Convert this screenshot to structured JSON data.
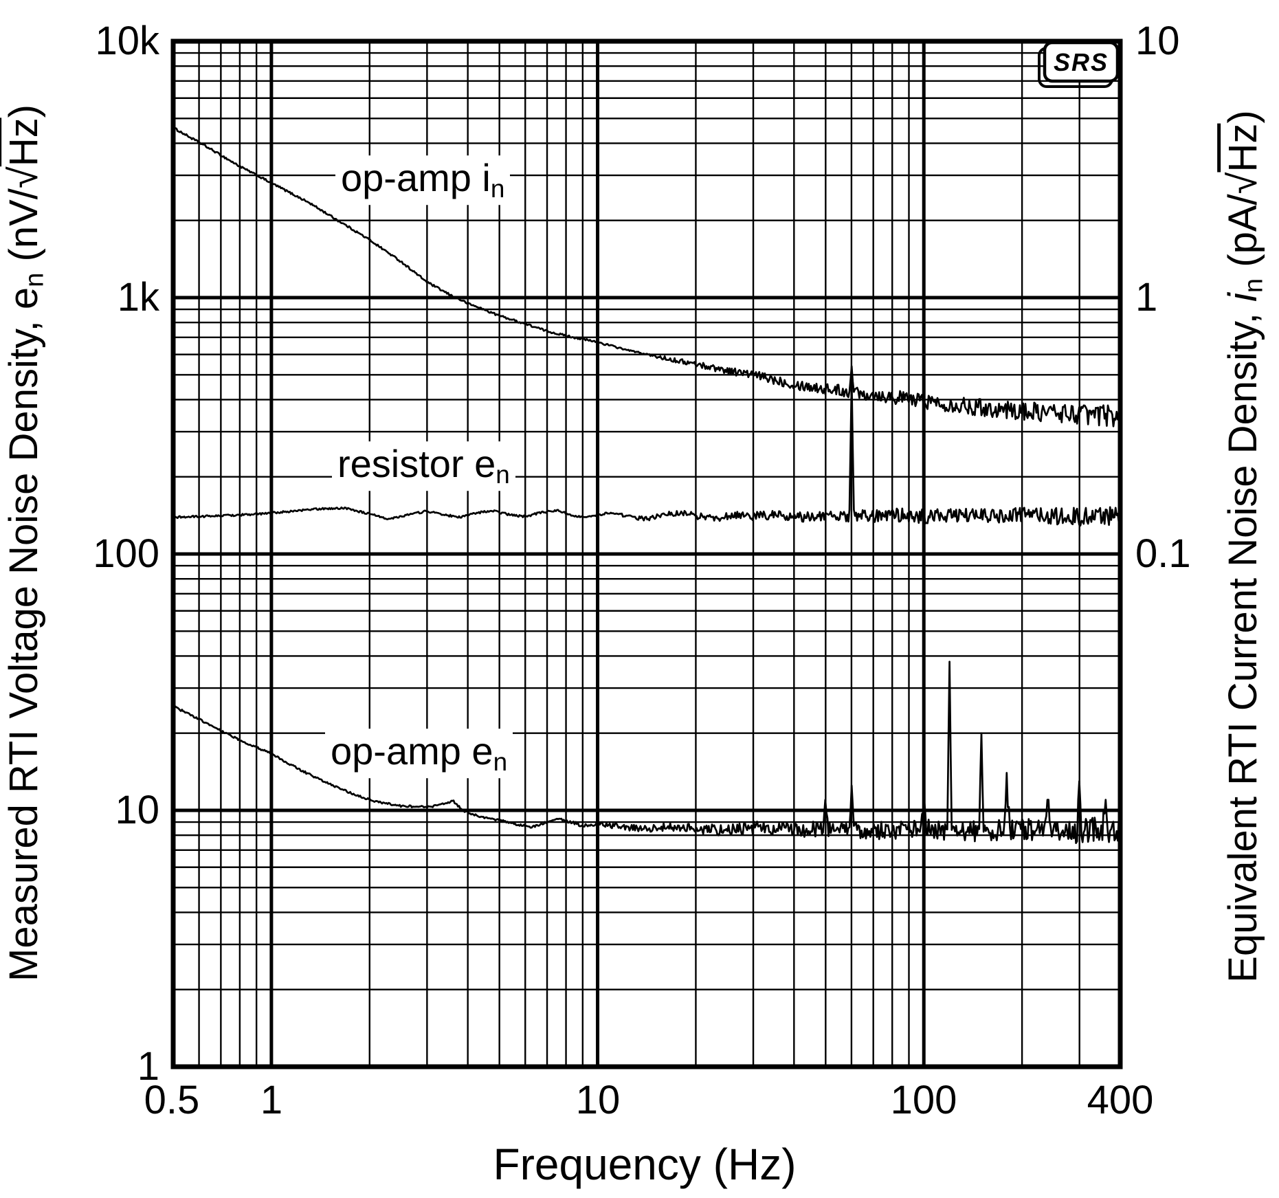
{
  "figure": {
    "background": "#ffffff",
    "ink": "#000000"
  },
  "logo": {
    "text": "SRS"
  },
  "chart_data": {
    "type": "line",
    "title": "",
    "xlabel": "Frequency (Hz)",
    "x_scale": "log",
    "y_scale": "log",
    "grid": "on, log major and minor, black on white",
    "xlim": [
      0.5,
      400
    ],
    "ylim_left_nV_per_rtHz": [
      1,
      10000
    ],
    "ylim_right_pA_per_rtHz": [
      0.001,
      10
    ],
    "left_axis_title": {
      "text": "Measured RTI Voltage Noise Density, e",
      "sub": "n",
      "unit_open": " (nV/",
      "sqrt": "√",
      "unit": "Hz",
      "close": ")"
    },
    "right_axis_title": {
      "text": "Equivalent RTI Current Noise Density, ",
      "italic": "i",
      "sub": "n",
      "unit_open": " (pA/",
      "sqrt": "√",
      "unit": "Hz",
      "close": ")"
    },
    "x_ticks": [
      {
        "value": 0.5,
        "label": "0.5"
      },
      {
        "value": 1,
        "label": "1"
      },
      {
        "value": 10,
        "label": "10"
      },
      {
        "value": 100,
        "label": "100"
      },
      {
        "value": 400,
        "label": "400"
      }
    ],
    "y_ticks_left": [
      {
        "value": 10000,
        "label": "10k"
      },
      {
        "value": 1000,
        "label": "1k"
      },
      {
        "value": 100,
        "label": "100"
      },
      {
        "value": 10,
        "label": "10"
      },
      {
        "value": 1,
        "label": "1"
      }
    ],
    "y_ticks_right": [
      {
        "value": 10,
        "label": "10"
      },
      {
        "value": 1,
        "label": "1"
      },
      {
        "value": 0.1,
        "label": "0.1"
      }
    ],
    "series": [
      {
        "name": "op-amp in",
        "label": {
          "text": "op-amp i",
          "sub": "n"
        },
        "axis": "right",
        "units": "pA/√Hz",
        "points": [
          [
            0.5,
            4.6
          ],
          [
            0.65,
            3.8
          ],
          [
            0.8,
            3.25
          ],
          [
            1.0,
            2.8
          ],
          [
            1.3,
            2.35
          ],
          [
            1.6,
            2.0
          ],
          [
            2.0,
            1.68
          ],
          [
            2.5,
            1.38
          ],
          [
            3.0,
            1.15
          ],
          [
            3.5,
            1.03
          ],
          [
            4.0,
            0.95
          ],
          [
            5.0,
            0.85
          ],
          [
            6.0,
            0.79
          ],
          [
            7.0,
            0.74
          ],
          [
            8.0,
            0.71
          ],
          [
            10,
            0.67
          ],
          [
            12,
            0.63
          ],
          [
            15,
            0.59
          ],
          [
            20,
            0.55
          ],
          [
            25,
            0.52
          ],
          [
            30,
            0.5
          ],
          [
            40,
            0.46
          ],
          [
            50,
            0.44
          ],
          [
            60,
            0.43
          ],
          [
            80,
            0.41
          ],
          [
            100,
            0.395
          ],
          [
            130,
            0.38
          ],
          [
            160,
            0.37
          ],
          [
            200,
            0.36
          ],
          [
            260,
            0.355
          ],
          [
            320,
            0.35
          ],
          [
            400,
            0.345
          ]
        ],
        "noise": {
          "start_hz": 12,
          "log_amplitude": 0.042
        },
        "spikes": [
          [
            60,
            0.54
          ]
        ]
      },
      {
        "name": "resistor en",
        "label": {
          "text": "resistor e",
          "sub": "n"
        },
        "axis": "left",
        "units": "nV/√Hz",
        "points": [
          [
            0.5,
            139
          ],
          [
            0.7,
            141
          ],
          [
            0.9,
            143
          ],
          [
            1.1,
            146
          ],
          [
            1.4,
            150
          ],
          [
            1.7,
            151
          ],
          [
            2.0,
            143
          ],
          [
            2.3,
            137
          ],
          [
            2.6,
            142
          ],
          [
            3.0,
            147
          ],
          [
            3.4,
            142
          ],
          [
            3.8,
            139
          ],
          [
            4.3,
            145
          ],
          [
            4.8,
            147
          ],
          [
            5.4,
            142
          ],
          [
            6.0,
            140
          ],
          [
            6.7,
            145
          ],
          [
            7.5,
            148
          ],
          [
            8.3,
            142
          ],
          [
            9.2,
            139
          ],
          [
            10,
            142
          ],
          [
            11,
            145
          ],
          [
            12.5,
            140
          ],
          [
            14,
            137
          ],
          [
            16,
            142
          ],
          [
            18,
            145
          ],
          [
            20,
            141
          ],
          [
            23,
            138
          ],
          [
            26,
            142
          ],
          [
            30,
            140
          ],
          [
            35,
            142
          ],
          [
            40,
            139
          ],
          [
            50,
            141
          ],
          [
            60,
            141
          ],
          [
            70,
            140
          ],
          [
            85,
            142
          ],
          [
            100,
            140
          ],
          [
            130,
            141
          ],
          [
            170,
            140
          ],
          [
            220,
            141
          ],
          [
            280,
            140
          ],
          [
            340,
            140
          ],
          [
            400,
            140
          ]
        ],
        "noise": {
          "start_hz": 9,
          "log_amplitude": 0.038
        },
        "spikes": [
          [
            60,
            480
          ]
        ]
      },
      {
        "name": "op-amp en",
        "label": {
          "text": "op-amp e",
          "sub": "n"
        },
        "axis": "left",
        "units": "nV/√Hz",
        "points": [
          [
            0.5,
            25.5
          ],
          [
            0.65,
            21.5
          ],
          [
            0.8,
            18.8
          ],
          [
            1.0,
            16.6
          ],
          [
            1.25,
            14.2
          ],
          [
            1.5,
            12.7
          ],
          [
            1.8,
            11.5
          ],
          [
            2.1,
            10.8
          ],
          [
            2.5,
            10.4
          ],
          [
            3.0,
            10.3
          ],
          [
            3.3,
            10.5
          ],
          [
            3.6,
            10.9
          ],
          [
            3.9,
            9.9
          ],
          [
            4.3,
            9.5
          ],
          [
            5.0,
            9.15
          ],
          [
            5.7,
            8.8
          ],
          [
            6.3,
            8.6
          ],
          [
            7.0,
            9.0
          ],
          [
            7.6,
            9.3
          ],
          [
            8.2,
            9.0
          ],
          [
            9.0,
            8.75
          ],
          [
            10,
            8.85
          ],
          [
            12,
            8.6
          ],
          [
            14,
            8.5
          ],
          [
            17,
            8.6
          ],
          [
            20,
            8.5
          ],
          [
            25,
            8.35
          ],
          [
            30,
            8.55
          ],
          [
            40,
            8.4
          ],
          [
            50,
            8.5
          ],
          [
            60,
            8.4
          ],
          [
            80,
            8.35
          ],
          [
            100,
            8.45
          ],
          [
            130,
            8.35
          ],
          [
            170,
            8.3
          ],
          [
            220,
            8.35
          ],
          [
            280,
            8.3
          ],
          [
            340,
            8.35
          ],
          [
            400,
            8.3
          ]
        ],
        "noise": {
          "start_hz": 7,
          "log_amplitude": 0.052
        },
        "spikes": [
          [
            50,
            11
          ],
          [
            60,
            12.5
          ],
          [
            100,
            11
          ],
          [
            120,
            38
          ],
          [
            150,
            20
          ],
          [
            180,
            14
          ],
          [
            240,
            11
          ],
          [
            300,
            13
          ],
          [
            360,
            11
          ]
        ]
      }
    ]
  }
}
